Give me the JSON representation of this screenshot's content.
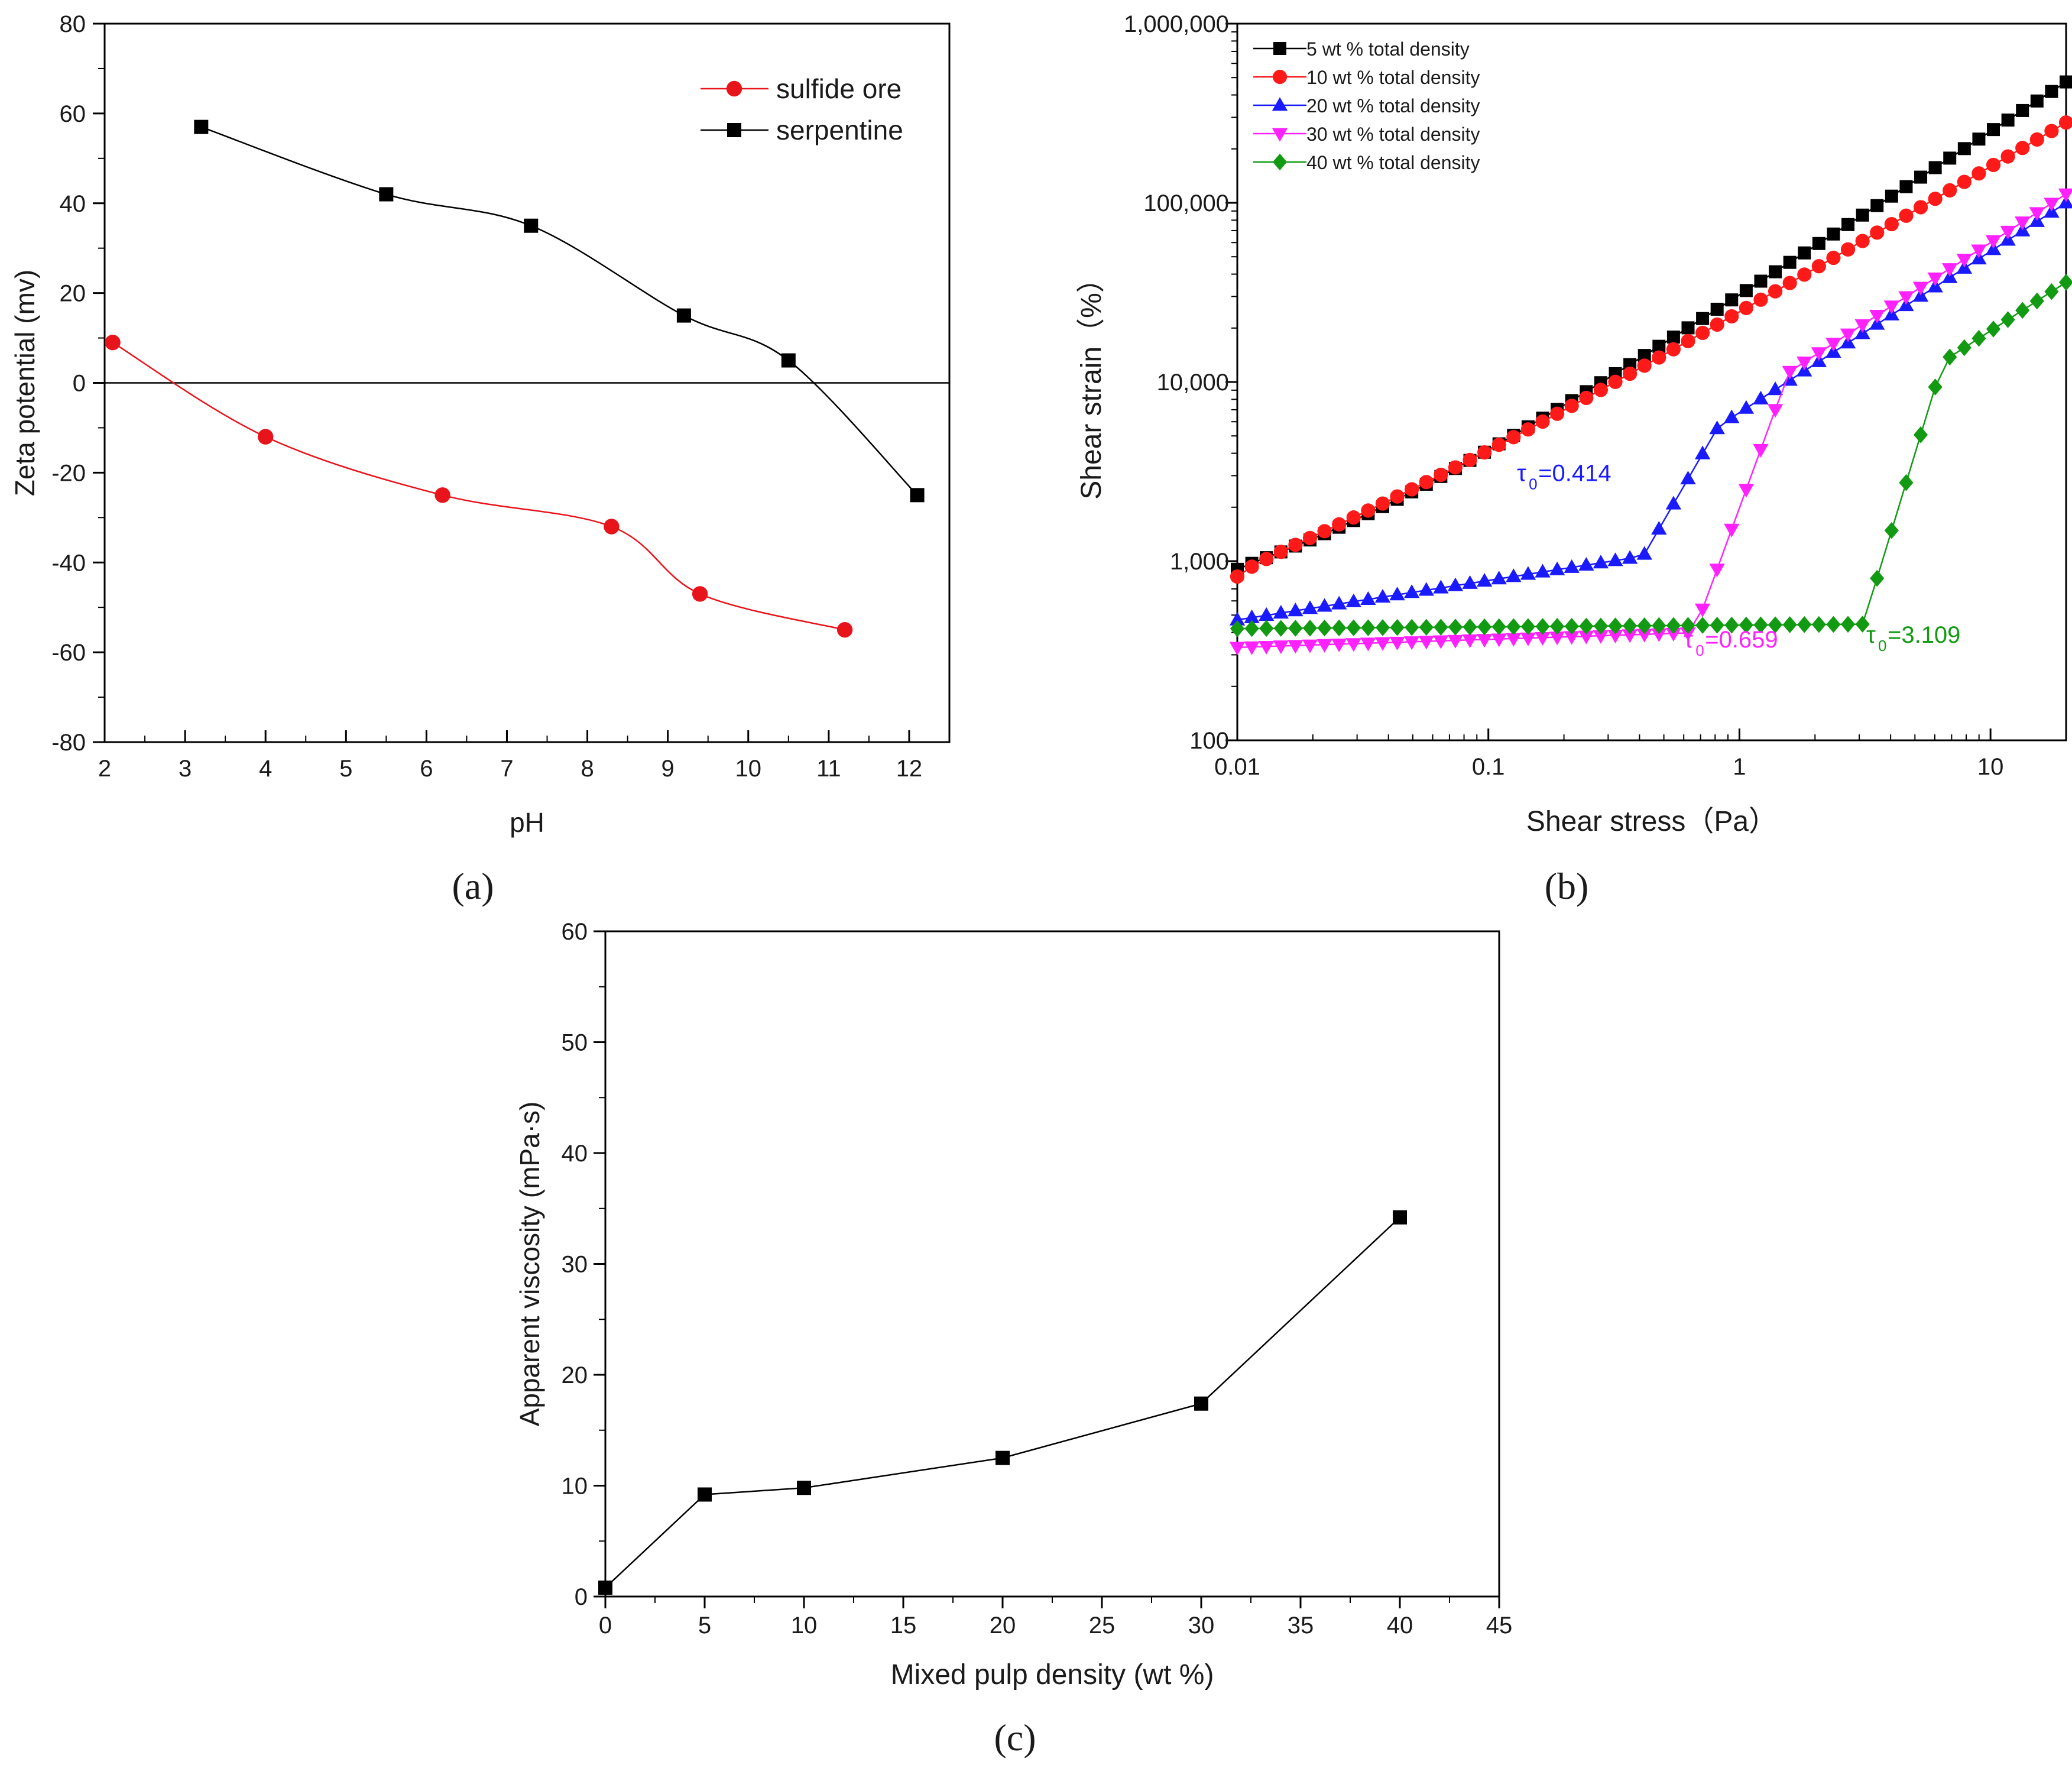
{
  "chart_data": [
    {
      "panel": "a",
      "panel_label": "(a)",
      "type": "line",
      "xlabel": "pH",
      "ylabel": "Zeta potential (mv)",
      "xlim": [
        2,
        12.5
      ],
      "ylim": [
        -80,
        80
      ],
      "xticks": [
        2,
        3,
        4,
        5,
        6,
        7,
        8,
        9,
        10,
        11,
        12
      ],
      "yticks": [
        -80,
        -60,
        -40,
        -20,
        0,
        20,
        40,
        60,
        80
      ],
      "zero_line": true,
      "legend": "top-right",
      "series": [
        {
          "name": "sulfide ore",
          "color": "#e8141b",
          "marker": "circle",
          "x": [
            2.1,
            4.0,
            6.2,
            8.3,
            9.4,
            11.2
          ],
          "y": [
            9,
            -12,
            -25,
            -32,
            -47,
            -55
          ]
        },
        {
          "name": "serpentine",
          "color": "#000000",
          "marker": "square",
          "x": [
            3.2,
            5.5,
            7.3,
            9.2,
            10.5,
            12.1
          ],
          "y": [
            57,
            42,
            35,
            15,
            5,
            -25
          ]
        }
      ]
    },
    {
      "panel": "b",
      "panel_label": "(b)",
      "type": "scatter",
      "xscale": "log",
      "yscale": "log",
      "xlabel": "Shear stress（Pa）",
      "ylabel": "Shear strain（%）",
      "xlim": [
        0.01,
        20
      ],
      "ylim": [
        100,
        1000000
      ],
      "xtick_values": [
        0.01,
        0.1,
        1,
        10
      ],
      "xtick_labels": [
        "0.01",
        "0.1",
        "1",
        "10"
      ],
      "ytick_values": [
        100,
        1000,
        10000,
        100000,
        1000000
      ],
      "ytick_labels": [
        "100",
        "1,000",
        "10,000",
        "100,000",
        "1,000,000"
      ],
      "legend": "top-left",
      "series": [
        {
          "name": "5 wt % total density",
          "color": "#000000",
          "marker": "square",
          "curve": {
            "kind": "power",
            "x0": 0.01,
            "y0": 900,
            "k": 30000,
            "p": 0.92,
            "cap": 560000
          }
        },
        {
          "name": "10 wt % total density",
          "color": "#ff1a1a",
          "marker": "circle",
          "curve": {
            "kind": "power",
            "x0": 0.01,
            "y0": 820,
            "k": 24000,
            "p": 0.82,
            "cap": 470000
          }
        },
        {
          "name": "20 wt % total density",
          "color": "#1a1aff",
          "marker": "triangle-up",
          "curve": {
            "kind": "yield",
            "base_at_start": 470,
            "base_slope": 0.22,
            "tau0": 0.414,
            "rise": 2.2,
            "cap": 100000
          }
        },
        {
          "name": "30 wt % total density",
          "color": "#ff22ff",
          "marker": "triangle-down",
          "curve": {
            "kind": "yield",
            "base_at_start": 330,
            "base_slope": 0.045,
            "tau0": 0.659,
            "rise": 3.8,
            "cap": 112000
          }
        },
        {
          "name": "40 wt % total density",
          "color": "#129a12",
          "marker": "diamond",
          "curve": {
            "kind": "yield",
            "base_at_start": 420,
            "base_slope": 0.01,
            "tau0": 3.109,
            "rise": 4.6,
            "cap": 36000
          }
        }
      ],
      "annotations": [
        {
          "label": "τ",
          "sub": "0",
          "value": "=0.414",
          "color": "#1a1aff",
          "x": 0.13,
          "y": 2800
        },
        {
          "label": "τ",
          "sub": "0",
          "value": "=0.659",
          "color": "#ff22ff",
          "x": 0.6,
          "y": 330
        },
        {
          "label": "τ",
          "sub": "0",
          "value": "=3.109",
          "color": "#129a12",
          "x": 3.2,
          "y": 350
        }
      ]
    },
    {
      "panel": "c",
      "panel_label": "(c)",
      "type": "line",
      "xlabel": "Mixed pulp density (wt %)",
      "ylabel": "Apparent viscosity (mPa·s)",
      "xlim": [
        0,
        45
      ],
      "ylim": [
        0,
        60
      ],
      "xticks": [
        0,
        5,
        10,
        15,
        20,
        25,
        30,
        35,
        40,
        45
      ],
      "yticks": [
        0,
        10,
        20,
        30,
        40,
        50,
        60
      ],
      "series": [
        {
          "name": "",
          "color": "#000000",
          "marker": "square",
          "x": [
            0,
            5,
            10,
            20,
            30,
            40
          ],
          "y": [
            0.8,
            9.2,
            9.8,
            12.5,
            17.4,
            34.2
          ]
        }
      ]
    }
  ]
}
